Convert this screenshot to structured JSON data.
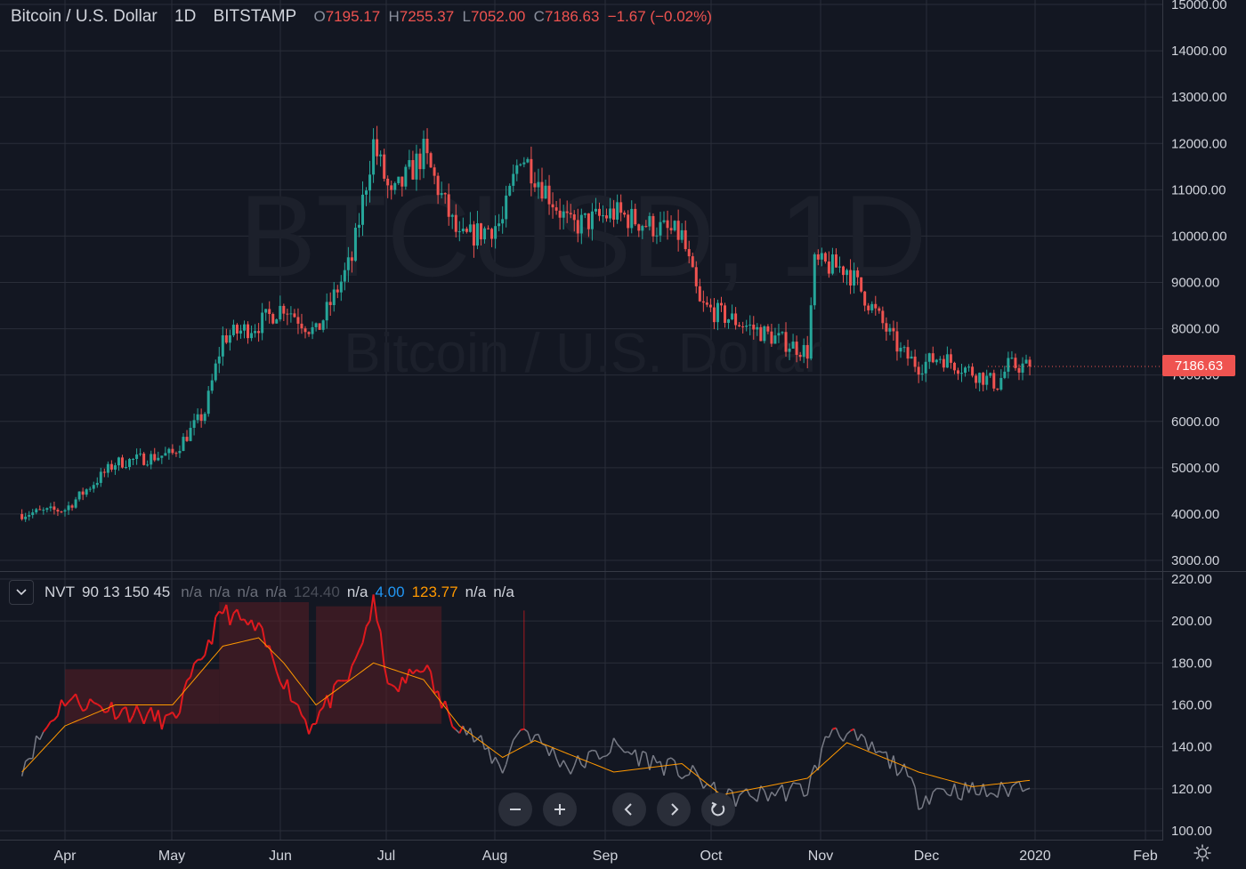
{
  "header": {
    "symbol": "Bitcoin / U.S. Dollar",
    "interval": "1D",
    "exchange": "BITSTAMP",
    "open_label": "O",
    "open": "7195.17",
    "high_label": "H",
    "high": "7255.37",
    "low_label": "L",
    "low": "7052.00",
    "close_label": "C",
    "close": "7186.63",
    "change": "−1.67 (−0.02%)"
  },
  "watermark": {
    "ticker": "BTCUSD, 1D",
    "name": "Bitcoin / U.S. Dollar"
  },
  "last_price": "7186.63",
  "indicator": {
    "name": "NVT",
    "params": "90 13 150 45",
    "values": [
      {
        "text": "n/a",
        "color": "#6b6f7a"
      },
      {
        "text": "n/a",
        "color": "#6b6f7a"
      },
      {
        "text": "n/a",
        "color": "#6b6f7a"
      },
      {
        "text": "n/a",
        "color": "#6b6f7a"
      },
      {
        "text": "124.40",
        "color": "#4a4e59"
      },
      {
        "text": "n/a",
        "color": "#d1d4dc"
      },
      {
        "text": "4.00",
        "color": "#2196f3"
      },
      {
        "text": "123.77",
        "color": "#ff9800"
      },
      {
        "text": "n/a",
        "color": "#d1d4dc"
      },
      {
        "text": "n/a",
        "color": "#d1d4dc"
      }
    ]
  },
  "colors": {
    "background": "#131722",
    "grid": "#2a2e39",
    "up": "#26a69a",
    "down": "#ef5350",
    "nvt_high": "#e0191e",
    "nvt_normal": "#787b86",
    "nvt_ma": "#ff9800",
    "zone": "#5a1e24"
  },
  "nav_icons": [
    "zoom-out-icon",
    "zoom-in-icon",
    "scroll-left-icon",
    "scroll-right-icon",
    "reset-icon"
  ],
  "chart_data": [
    {
      "type": "candlestick",
      "title": "Bitcoin / U.S. Dollar",
      "ylim": [
        3000,
        15000
      ],
      "y_ticks": [
        "15000.00",
        "14000.00",
        "13000.00",
        "12000.00",
        "11000.00",
        "10000.00",
        "9000.00",
        "8000.00",
        "7000.00",
        "6000.00",
        "5000.00",
        "4000.00",
        "3000.00"
      ],
      "x_ticks": [
        "Apr",
        "May",
        "Jun",
        "Jul",
        "Aug",
        "Sep",
        "Oct",
        "Nov",
        "Dec",
        "2020",
        "Feb"
      ],
      "grid": true,
      "close_path_monthly": {
        "x": [
          "Mar 20",
          "Apr 1",
          "Apr 15",
          "May 1",
          "May 10",
          "May 15",
          "May 25",
          "Jun 1",
          "Jun 10",
          "Jun 20",
          "Jun 26",
          "Jul 1",
          "Jul 10",
          "Jul 20",
          "Aug 1",
          "Aug 6",
          "Aug 20",
          "Sep 1",
          "Sep 20",
          "Sep 25",
          "Oct 1",
          "Oct 25",
          "Oct 27",
          "Nov 5",
          "Nov 20",
          "Nov 25",
          "Dec 1",
          "Dec 17",
          "Dec 20",
          "Dec 26"
        ],
        "close": [
          4000,
          4100,
          5100,
          5300,
          6200,
          7800,
          8100,
          8500,
          7900,
          9500,
          12000,
          10800,
          11800,
          9900,
          10300,
          11800,
          10200,
          10500,
          10000,
          8500,
          8300,
          7500,
          9400,
          9300,
          7500,
          7200,
          7400,
          6800,
          7200,
          7187
        ]
      }
    },
    {
      "type": "line",
      "title": "NVT 90 13 150 45",
      "ylim": [
        100,
        220
      ],
      "y_ticks": [
        "220.00",
        "200.00",
        "180.00",
        "160.00",
        "140.00",
        "120.00",
        "100.00"
      ],
      "series": [
        {
          "name": "NVT",
          "x": [
            "Mar 20",
            "Apr 1",
            "Apr 15",
            "May 1",
            "May 15",
            "May 25",
            "Jun 1",
            "Jun 8",
            "Jun 20",
            "Jun 26",
            "Jul 1",
            "Jul 10",
            "Jul 15",
            "Aug 1",
            "Aug 6",
            "Aug 20",
            "Sep 1",
            "Sep 25",
            "Oct 1",
            "Oct 25",
            "Nov 1",
            "Nov 20",
            "Nov 25",
            "Dec 1",
            "Dec 17",
            "Dec 26"
          ],
          "values": [
            131,
            163,
            158,
            152,
            205,
            195,
            172,
            150,
            175,
            208,
            165,
            180,
            160,
            130,
            150,
            130,
            140,
            125,
            115,
            120,
            150,
            130,
            115,
            120,
            118,
            124
          ]
        },
        {
          "name": "MA",
          "x": [
            "Mar 20",
            "Apr 1",
            "Apr 15",
            "May 1",
            "May 15",
            "May 25",
            "Jun 1",
            "Jun 10",
            "Jun 26",
            "Jul 10",
            "Jul 20",
            "Aug 1",
            "Aug 10",
            "Sep 1",
            "Sep 20",
            "Oct 1",
            "Oct 25",
            "Nov 5",
            "Nov 25",
            "Dec 10",
            "Dec 26"
          ],
          "values": [
            128,
            150,
            160,
            160,
            188,
            192,
            180,
            160,
            180,
            172,
            150,
            135,
            143,
            128,
            132,
            117,
            125,
            142,
            128,
            121,
            124
          ]
        }
      ],
      "zones": [
        {
          "from": "Apr 1",
          "to": "May 14",
          "low": 151,
          "high": 177
        },
        {
          "from": "May 14",
          "to": "Jun 8",
          "low": 151,
          "high": 209
        },
        {
          "from": "Jun 10",
          "to": "Jul 15",
          "low": 151,
          "high": 207
        }
      ]
    }
  ]
}
